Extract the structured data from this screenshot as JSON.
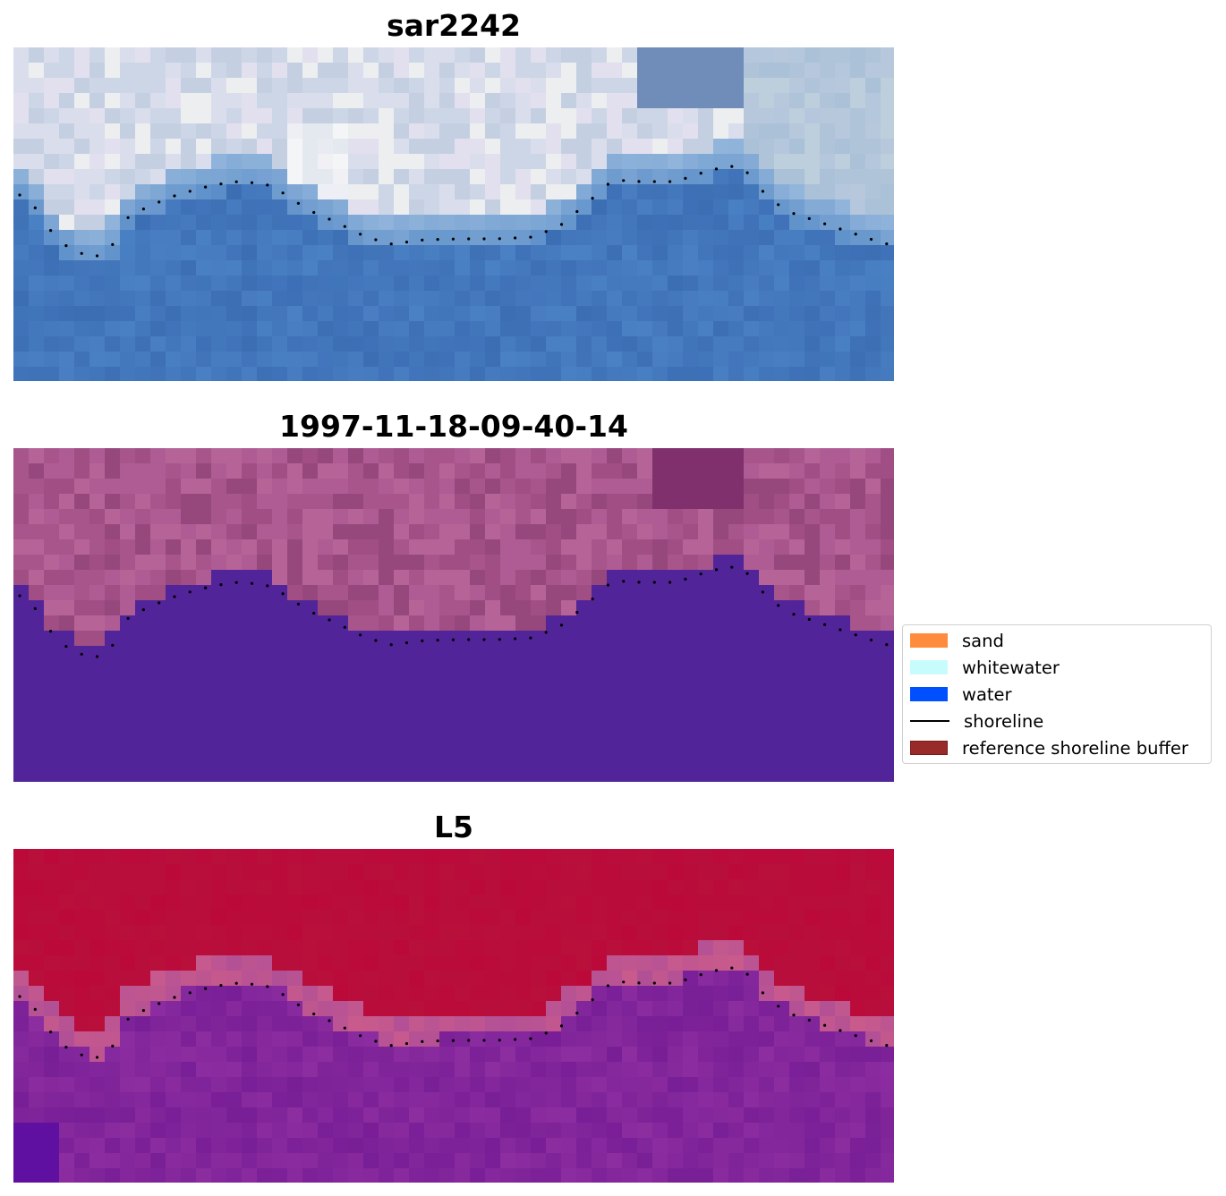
{
  "panels": [
    {
      "title": "sar2242",
      "palette": "rgb_composite"
    },
    {
      "title": "1997-11-18-09-40-14",
      "palette": "classification"
    },
    {
      "title": "L5",
      "palette": "water_index"
    }
  ],
  "legend": {
    "items": [
      {
        "label": "sand",
        "color": "#ff8c3c",
        "kind": "patch"
      },
      {
        "label": "whitewater",
        "color": "#c8fcfc",
        "kind": "patch"
      },
      {
        "label": "water",
        "color": "#0050ff",
        "kind": "patch"
      },
      {
        "label": "shoreline",
        "color": "#000000",
        "kind": "line"
      },
      {
        "label": "reference shoreline buffer",
        "color": "#992a2a",
        "kind": "patch"
      }
    ]
  },
  "colors": {
    "classified_water": "#52249a",
    "classified_land": "#a8558c",
    "index_land": "#bb0a3a",
    "index_water": "#86289e",
    "shoreline_dots": "#000000"
  },
  "icons": []
}
